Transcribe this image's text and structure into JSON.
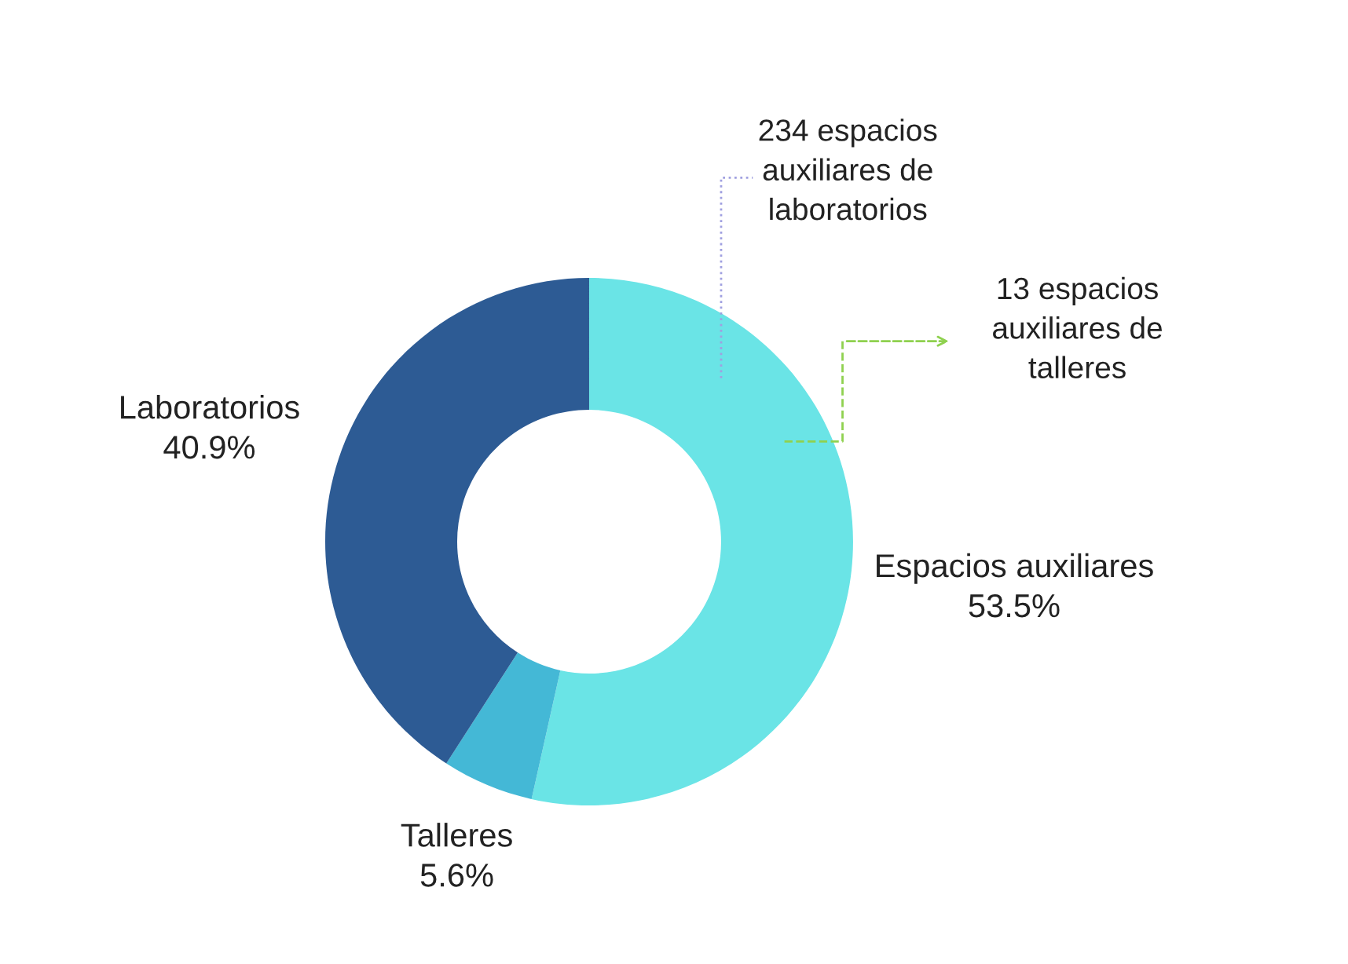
{
  "chart_data": {
    "type": "donut",
    "categories": [
      "Espacios auxiliares",
      "Talleres",
      "Laboratorios"
    ],
    "values": [
      53.5,
      5.6,
      40.9
    ],
    "value_labels": [
      "53.5%",
      "5.6%",
      "40.9%"
    ],
    "colors": [
      "#6ae4e6",
      "#44b8d6",
      "#2d5b94"
    ],
    "annotations": [
      "234 espacios\nauxiliares de\nlaboratorios",
      "13 espacios\nauxiliares de\ntalleres"
    ],
    "legend": false
  }
}
